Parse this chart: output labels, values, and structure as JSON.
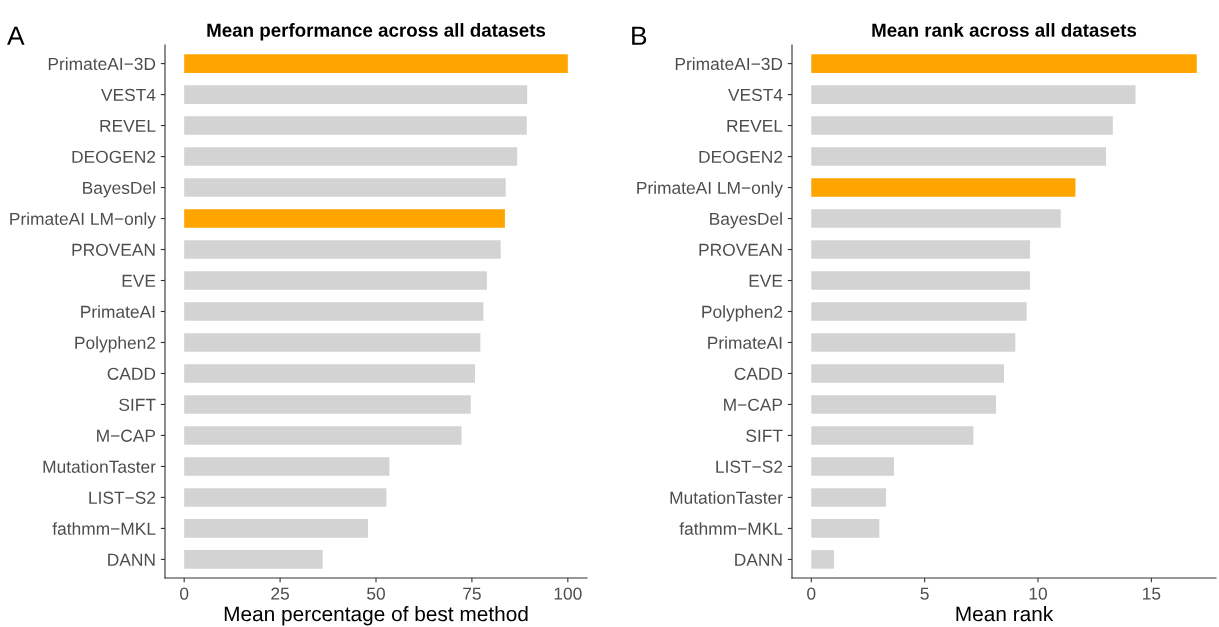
{
  "chart_data": [
    {
      "type": "bar",
      "orientation": "horizontal",
      "title": "Mean performance across all datasets",
      "xlabel": "Mean percentage of best method",
      "annotations": [
        "A"
      ],
      "categories": [
        "PrimateAI−3D",
        "VEST4",
        "REVEL",
        "DEOGEN2",
        "BayesDel",
        "PrimateAI LM−only",
        "PROVEAN",
        "EVE",
        "PrimateAI",
        "Polyphen2",
        "CADD",
        "SIFT",
        "M−CAP",
        "MutationTaster",
        "LIST−S2",
        "fathmm−MKL",
        "DANN"
      ],
      "values": [
        100,
        89.4,
        89.3,
        86.8,
        83.8,
        83.6,
        82.5,
        78.9,
        78.0,
        77.2,
        75.8,
        74.7,
        72.3,
        53.5,
        52.7,
        47.9,
        36.1
      ],
      "colors": [
        "#ffa500",
        "#d3d3d3",
        "#d3d3d3",
        "#d3d3d3",
        "#d3d3d3",
        "#ffa500",
        "#d3d3d3",
        "#d3d3d3",
        "#d3d3d3",
        "#d3d3d3",
        "#d3d3d3",
        "#d3d3d3",
        "#d3d3d3",
        "#d3d3d3",
        "#d3d3d3",
        "#d3d3d3",
        "#d3d3d3"
      ],
      "xlim": [
        -5,
        105
      ],
      "xticks": [
        0,
        25,
        50,
        75,
        100
      ],
      "grid": false
    },
    {
      "type": "bar",
      "orientation": "horizontal",
      "title": "Mean rank across all datasets",
      "xlabel": "Mean rank",
      "annotations": [
        "B"
      ],
      "categories": [
        "PrimateAI−3D",
        "VEST4",
        "REVEL",
        "DEOGEN2",
        "PrimateAI LM−only",
        "BayesDel",
        "PROVEAN",
        "EVE",
        "Polyphen2",
        "PrimateAI",
        "CADD",
        "M−CAP",
        "SIFT",
        "LIST−S2",
        "MutationTaster",
        "fathmm−MKL",
        "DANN"
      ],
      "values": [
        17.0,
        14.3,
        13.3,
        13.0,
        11.65,
        11.0,
        9.65,
        9.65,
        9.5,
        9.0,
        8.5,
        8.15,
        7.15,
        3.65,
        3.3,
        3.0,
        1.0
      ],
      "colors": [
        "#ffa500",
        "#d3d3d3",
        "#d3d3d3",
        "#d3d3d3",
        "#ffa500",
        "#d3d3d3",
        "#d3d3d3",
        "#d3d3d3",
        "#d3d3d3",
        "#d3d3d3",
        "#d3d3d3",
        "#d3d3d3",
        "#d3d3d3",
        "#d3d3d3",
        "#d3d3d3",
        "#d3d3d3",
        "#d3d3d3"
      ],
      "xlim": [
        -0.85,
        17.85
      ],
      "xticks": [
        0,
        5,
        10,
        15
      ],
      "grid": false
    }
  ]
}
